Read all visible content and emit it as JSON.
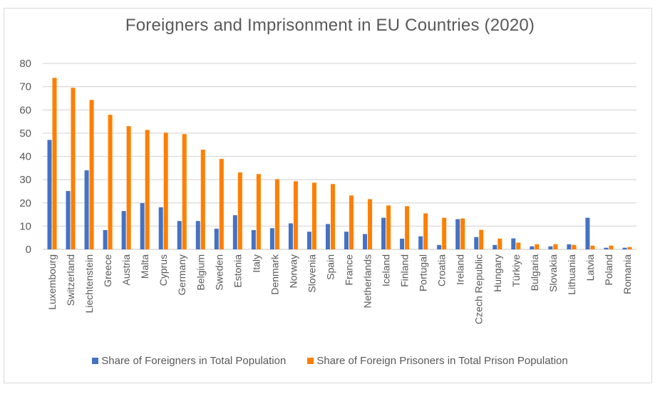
{
  "chart_data": {
    "type": "bar",
    "title": "Foreigners and Imprisonment in EU Countries (2020)",
    "xlabel": "",
    "ylabel": "",
    "ylim": [
      0,
      80
    ],
    "yticks": [
      0,
      10,
      20,
      30,
      40,
      50,
      60,
      70,
      80
    ],
    "grid": true,
    "legend_position": "bottom",
    "categories": [
      "Luxembourg",
      "Switzerland",
      "Liechtenstein",
      "Greece",
      "Austria",
      "Malta",
      "Cyprus",
      "Germany",
      "Belgium",
      "Sweden",
      "Estonia",
      "Italy",
      "Denmark",
      "Norway",
      "Slovenia",
      "Spain",
      "France",
      "Netherlands",
      "Iceland",
      "Finland",
      "Portugal",
      "Croatia",
      "Ireland",
      "Czech Republic",
      "Hungary",
      "Türkiye",
      "Bulgaria",
      "Slovakia",
      "Lithuania",
      "Latvia",
      "Poland",
      "Romania"
    ],
    "series": [
      {
        "name": "Share of Foreigners in Total Population",
        "color": "#4472c4",
        "values": [
          47.1,
          25.1,
          34.0,
          8.3,
          16.5,
          19.9,
          18.1,
          12.2,
          12.2,
          8.9,
          14.7,
          8.3,
          9.1,
          11.2,
          7.6,
          10.9,
          7.6,
          6.6,
          13.6,
          4.6,
          5.6,
          1.9,
          13.0,
          5.3,
          1.9,
          4.7,
          1.3,
          1.3,
          2.2,
          13.6,
          0.7,
          0.7
        ]
      },
      {
        "name": "Share of Foreign Prisoners in Total Prison Population",
        "color": "#ff7f00",
        "values": [
          73.8,
          69.5,
          64.3,
          57.9,
          53.0,
          51.4,
          50.2,
          49.6,
          42.9,
          38.9,
          33.1,
          32.4,
          30.2,
          29.3,
          28.7,
          28.1,
          23.2,
          21.6,
          18.9,
          18.6,
          15.5,
          13.6,
          13.3,
          8.4,
          4.6,
          2.9,
          2.2,
          2.2,
          1.9,
          1.6,
          1.6,
          1.0
        ]
      }
    ]
  }
}
